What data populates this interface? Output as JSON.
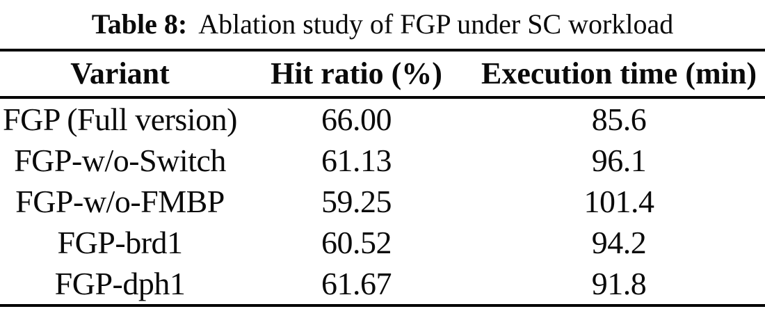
{
  "caption": {
    "label": "Table 8:",
    "text": "Ablation study of FGP under SC workload"
  },
  "table": {
    "columns": [
      "Variant",
      "Hit ratio (%)",
      "Execution time (min)"
    ],
    "rows": [
      {
        "variant": "FGP (Full version)",
        "hit_ratio": "66.00",
        "exec_time": "85.6"
      },
      {
        "variant": "FGP-w/o-Switch",
        "hit_ratio": "61.13",
        "exec_time": "96.1"
      },
      {
        "variant": "FGP-w/o-FMBP",
        "hit_ratio": "59.25",
        "exec_time": "101.4"
      },
      {
        "variant": "FGP-brd1",
        "hit_ratio": "60.52",
        "exec_time": "94.2"
      },
      {
        "variant": "FGP-dph1",
        "hit_ratio": "61.67",
        "exec_time": "91.8"
      }
    ]
  },
  "colors": {
    "background": "#ffffff",
    "text": "#0a0a0a",
    "rule": "#000000"
  }
}
